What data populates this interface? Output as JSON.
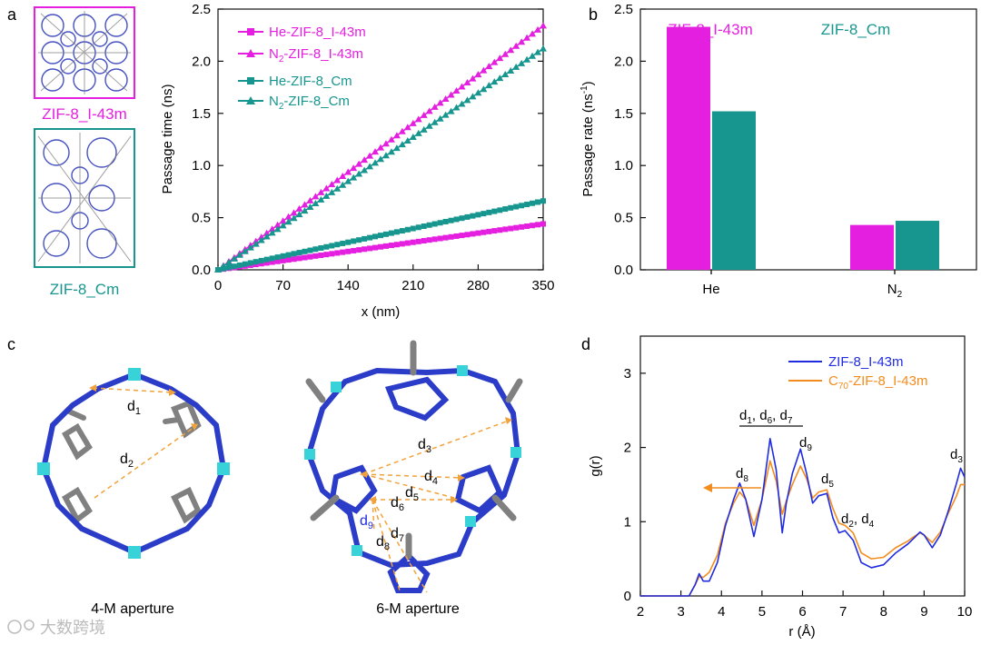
{
  "panel_letters": {
    "a": "a",
    "b": "b",
    "c": "c",
    "d": "d"
  },
  "panel_a": {
    "crystal_labels": [
      "ZIF-8_I-43m",
      "ZIF-8_Cm"
    ]
  },
  "panel_c": {
    "aperture_labels": [
      "4-M aperture",
      "6-M aperture"
    ],
    "four_m_distances": [
      {
        "main": "d",
        "sub": "1"
      },
      {
        "main": "d",
        "sub": "2"
      }
    ],
    "six_m_distances": [
      {
        "main": "d",
        "sub": "3"
      },
      {
        "main": "d",
        "sub": "4"
      },
      {
        "main": "d",
        "sub": "5"
      },
      {
        "main": "d",
        "sub": "6"
      },
      {
        "main": "d",
        "sub": "7"
      },
      {
        "main": "d",
        "sub": "8"
      },
      {
        "main": "d",
        "sub": "9"
      }
    ]
  },
  "watermark": "大数跨境",
  "colors": {
    "magenta": "#E51FE0",
    "teal": "#17968F",
    "blue": "#1F2BE0",
    "orange": "#F28C1E",
    "axis": "#111111"
  },
  "chart_data": [
    {
      "id": "a",
      "type": "line",
      "xlabel": "x (nm)",
      "ylabel": "Passage time (ns)",
      "xlim": [
        0,
        350
      ],
      "ylim": [
        0,
        2.5
      ],
      "xticks": [
        0,
        70,
        140,
        210,
        280,
        350
      ],
      "yticks": [
        0.0,
        0.5,
        1.0,
        1.5,
        2.0,
        2.5
      ],
      "series": [
        {
          "name": "He-ZIF-8_I-43m",
          "marker": "square",
          "color": "#E51FE0",
          "x": [
            0,
            350
          ],
          "y": [
            0,
            0.44
          ]
        },
        {
          "name_main": "N",
          "name_sub": "2",
          "name_rest": "-ZIF-8_I-43m",
          "marker": "triangle",
          "color": "#E51FE0",
          "x": [
            0,
            350
          ],
          "y": [
            0,
            2.34
          ]
        },
        {
          "name": "He-ZIF-8_Cm",
          "marker": "square",
          "color": "#17968F",
          "x": [
            0,
            350
          ],
          "y": [
            0,
            0.66
          ]
        },
        {
          "name_main": "N",
          "name_sub": "2",
          "name_rest": "-ZIF-8_Cm",
          "marker": "triangle",
          "color": "#17968F",
          "x": [
            0,
            350
          ],
          "y": [
            0,
            2.12
          ]
        }
      ]
    },
    {
      "id": "b",
      "type": "bar",
      "ylabel_main": "Passage rate (ns",
      "ylabel_sup": "-1",
      "ylabel_end": ")",
      "categories": [
        {
          "main": "He",
          "sub": ""
        },
        {
          "main": "N",
          "sub": "2"
        }
      ],
      "ylim": [
        0,
        2.5
      ],
      "yticks": [
        0.0,
        0.5,
        1.0,
        1.5,
        2.0,
        2.5
      ],
      "series": [
        {
          "name": "ZIF-8_I-43m",
          "color": "#E51FE0",
          "values": [
            2.33,
            0.43
          ]
        },
        {
          "name": "ZIF-8_Cm",
          "color": "#17968F",
          "values": [
            1.52,
            0.47
          ]
        }
      ]
    },
    {
      "id": "d",
      "type": "line",
      "xlabel": "r (Å)",
      "ylabel": "g(r)",
      "xlim": [
        2,
        10
      ],
      "ylim": [
        0,
        3.5
      ],
      "xticks": [
        2,
        3,
        4,
        5,
        6,
        7,
        8,
        9,
        10
      ],
      "yticks": [
        0,
        1,
        2,
        3
      ],
      "series": [
        {
          "name": "ZIF-8_I-43m",
          "color": "#1F2BE0",
          "x": [
            2.0,
            3.2,
            3.35,
            3.45,
            3.55,
            3.7,
            3.9,
            4.1,
            4.3,
            4.45,
            4.6,
            4.8,
            5.0,
            5.2,
            5.35,
            5.5,
            5.6,
            5.75,
            5.95,
            6.1,
            6.25,
            6.4,
            6.6,
            6.75,
            6.9,
            7.05,
            7.25,
            7.45,
            7.7,
            8.0,
            8.3,
            8.6,
            8.75,
            8.9,
            9.0,
            9.2,
            9.4,
            9.6,
            9.8,
            9.9,
            10.0
          ],
          "y": [
            0,
            0,
            0.15,
            0.3,
            0.2,
            0.2,
            0.45,
            0.95,
            1.3,
            1.52,
            1.3,
            0.8,
            1.3,
            2.12,
            1.7,
            0.85,
            1.25,
            1.65,
            1.98,
            1.65,
            1.25,
            1.35,
            1.38,
            1.05,
            0.85,
            0.88,
            0.75,
            0.45,
            0.38,
            0.42,
            0.58,
            0.7,
            0.78,
            0.86,
            0.82,
            0.65,
            0.82,
            1.15,
            1.52,
            1.72,
            1.6
          ]
        },
        {
          "name_main": "C",
          "name_sub": "70",
          "name_rest": "-ZIF-8_I-43m",
          "color": "#F28C1E",
          "x": [
            2.0,
            3.2,
            3.35,
            3.45,
            3.55,
            3.7,
            3.9,
            4.1,
            4.3,
            4.45,
            4.6,
            4.8,
            5.0,
            5.2,
            5.35,
            5.5,
            5.6,
            5.75,
            5.95,
            6.1,
            6.25,
            6.4,
            6.6,
            6.75,
            6.9,
            7.05,
            7.25,
            7.45,
            7.7,
            8.0,
            8.3,
            8.6,
            8.75,
            8.9,
            9.0,
            9.2,
            9.4,
            9.6,
            9.8,
            9.9,
            10.0
          ],
          "y": [
            0,
            0,
            0.15,
            0.26,
            0.25,
            0.32,
            0.55,
            0.98,
            1.25,
            1.4,
            1.3,
            0.95,
            1.3,
            1.82,
            1.55,
            1.1,
            1.28,
            1.5,
            1.75,
            1.58,
            1.32,
            1.4,
            1.43,
            1.18,
            0.98,
            0.95,
            0.85,
            0.58,
            0.5,
            0.52,
            0.65,
            0.74,
            0.8,
            0.85,
            0.82,
            0.72,
            0.86,
            1.12,
            1.35,
            1.5,
            1.5
          ]
        }
      ],
      "annotations": [
        {
          "main": "d",
          "sub": "1",
          "tail": ", ",
          "x": 5.0,
          "y": 2.2
        },
        {
          "main": "d",
          "sub": "8",
          "tail": "",
          "x": 4.42,
          "y": 1.6
        },
        {
          "main": "d",
          "sub": "9",
          "tail": "",
          "x": 5.95,
          "y": 2.05
        },
        {
          "main": "d",
          "sub": "5",
          "tail": "",
          "x": 6.55,
          "y": 1.45
        },
        {
          "main": "d",
          "sub": "2",
          "tail": ", ",
          "x": 7.1,
          "y": 0.95
        },
        {
          "main": "d",
          "sub": "3",
          "tail": "",
          "x": 9.9,
          "y": 1.77
        }
      ],
      "annotation_group": {
        "parts": [
          {
            "main": "d",
            "sub": "1"
          },
          {
            "main": "d",
            "sub": "6"
          },
          {
            "main": "d",
            "sub": "7"
          }
        ]
      },
      "annotation_pair": {
        "parts": [
          {
            "main": "d",
            "sub": "2"
          },
          {
            "main": "d",
            "sub": "4"
          }
        ]
      }
    }
  ]
}
